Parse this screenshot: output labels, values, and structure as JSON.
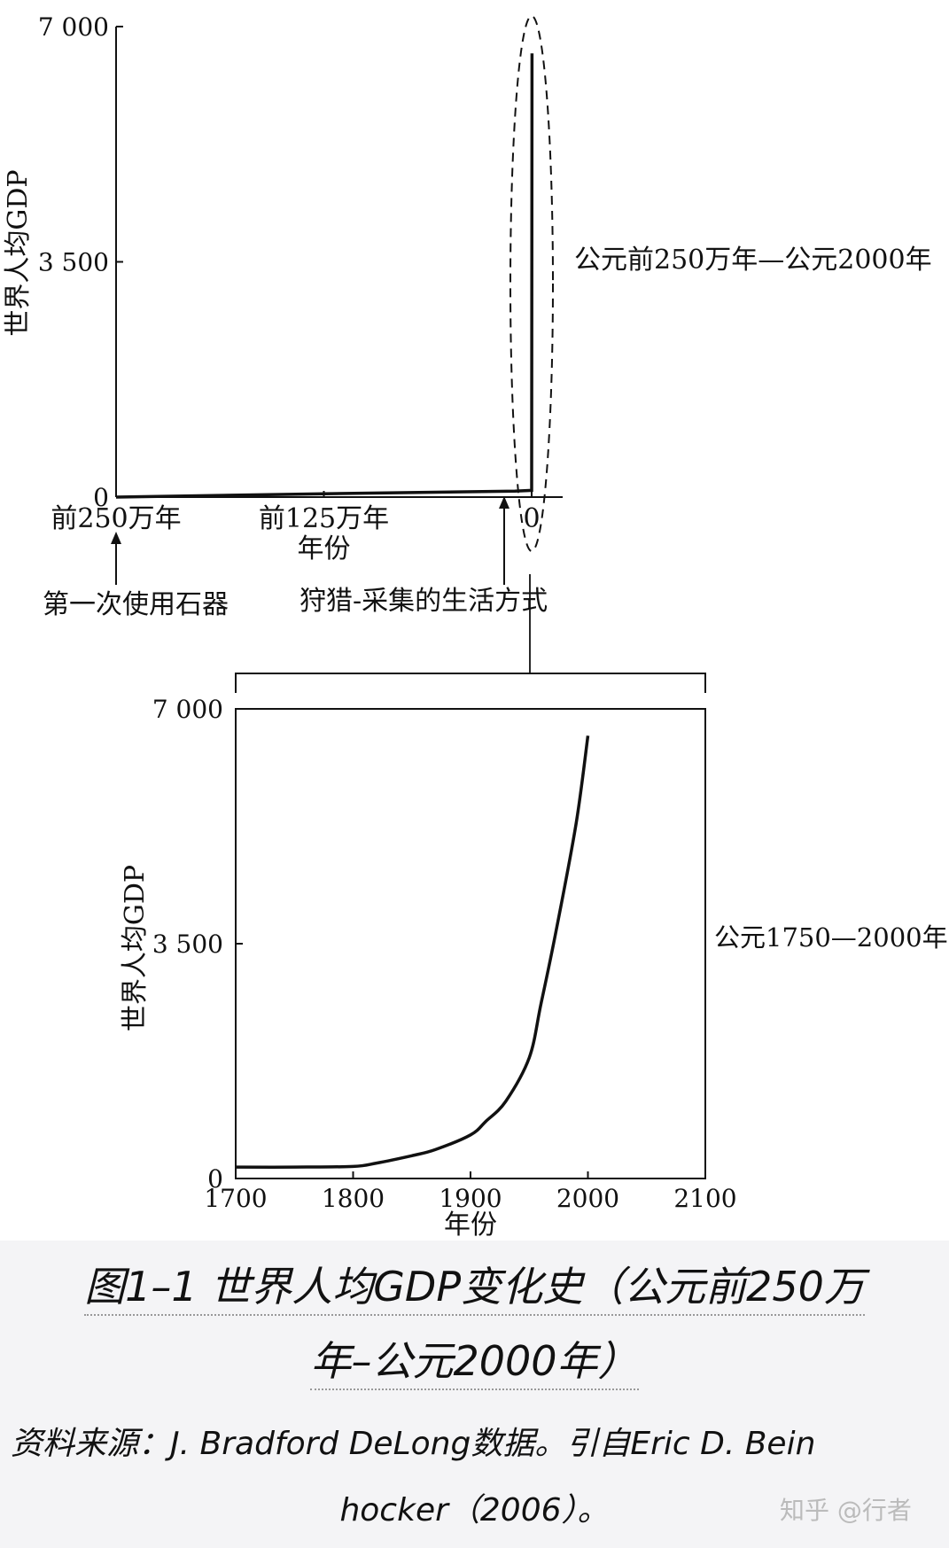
{
  "chart_data": [
    {
      "type": "line",
      "annotation": "公元前250万年—公元2000年",
      "ylabel": "世界人均GDP",
      "xlabel": "年份",
      "yticks": [
        {
          "value": 0,
          "label": "0"
        },
        {
          "value": 3500,
          "label": "3 500"
        },
        {
          "value": 7000,
          "label": "7 000"
        }
      ],
      "xticks": [
        {
          "value": -2500000,
          "label": "前250万年"
        },
        {
          "value": -1250000,
          "label": "前125万年"
        },
        {
          "value": 0,
          "label": "0"
        }
      ],
      "xlim": [
        -2500000,
        150000
      ],
      "ylim": [
        0,
        7000
      ],
      "x": [
        -2500000,
        -1250000,
        -100000,
        0,
        0,
        2000
      ],
      "y": [
        0,
        50,
        90,
        100,
        100,
        6600
      ],
      "callouts": [
        {
          "x": -2500000,
          "label": "第一次使用石器"
        },
        {
          "x": -120000,
          "label": "狩猎-采集的生活方式"
        }
      ]
    },
    {
      "type": "line",
      "annotation": "公元1750—2000年",
      "ylabel": "世界人均GDP",
      "xlabel": "年份",
      "yticks": [
        {
          "value": 0,
          "label": "0"
        },
        {
          "value": 3500,
          "label": "3 500"
        },
        {
          "value": 7000,
          "label": "7 000"
        }
      ],
      "xticks": [
        {
          "value": 1700,
          "label": "1700"
        },
        {
          "value": 1800,
          "label": "1800"
        },
        {
          "value": 1900,
          "label": "1900"
        },
        {
          "value": 2000,
          "label": "2000"
        },
        {
          "value": 2100,
          "label": "2100"
        }
      ],
      "xlim": [
        1700,
        2100
      ],
      "ylim": [
        0,
        7000
      ],
      "x": [
        1700,
        1750,
        1800,
        1820,
        1850,
        1870,
        1900,
        1913,
        1930,
        1950,
        1960,
        1973,
        1990,
        2000
      ],
      "y": [
        170,
        170,
        180,
        230,
        340,
        430,
        650,
        850,
        1150,
        1800,
        2600,
        3700,
        5300,
        6600
      ]
    }
  ],
  "caption": {
    "line1": "图1–1 世界人均GDP变化史（公元前250万",
    "line2": "年–公元2000年）"
  },
  "source": {
    "line1": "资料来源：J. Bradford DeLong数据。引自Eric D. Bein",
    "line2": "hocker（2006）。"
  },
  "watermark": "知乎 @行者"
}
